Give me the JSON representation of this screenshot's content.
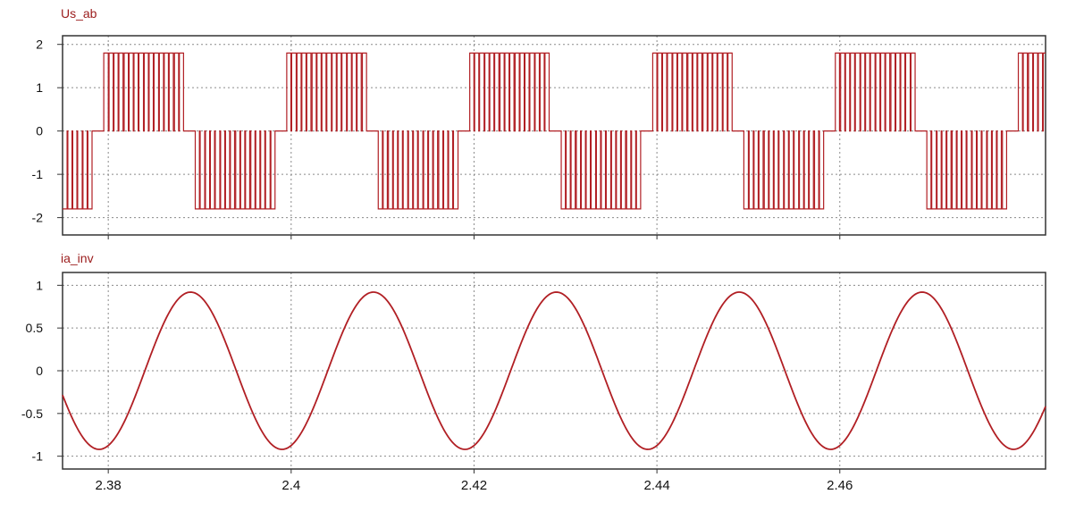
{
  "chart_data": [
    {
      "type": "line",
      "title": "Us_ab",
      "xlim": [
        2.375,
        2.4825
      ],
      "ylim": [
        -2.4,
        2.2
      ],
      "yticks": [
        2,
        1,
        0,
        -1,
        -2
      ],
      "ytick_labels": [
        "2",
        "1",
        "0",
        "-1",
        "-2"
      ],
      "xticks": [
        2.38,
        2.4,
        2.42,
        2.44,
        2.46
      ],
      "grid": true,
      "series": [
        {
          "color": "#b11f24",
          "frequency_hz": 50,
          "amplitude": 1.8,
          "phase_positive_start": 2.3795,
          "positive_duration": 0.0088,
          "negative_start": 2.3895,
          "negative_duration": 0.0088,
          "switching_interval": 0.00055
        }
      ]
    },
    {
      "type": "line",
      "title": "ia_inv",
      "xlim": [
        2.375,
        2.4825
      ],
      "ylim": [
        -1.15,
        1.15
      ],
      "yticks": [
        1,
        0.5,
        0,
        -0.5,
        -1
      ],
      "ytick_labels": [
        "1",
        "0.5",
        "0",
        "-0.5",
        "-1"
      ],
      "xticks": [
        2.38,
        2.4,
        2.42,
        2.44,
        2.46
      ],
      "xtick_labels": [
        "2.38",
        "2.4",
        "2.42",
        "2.44",
        "2.46"
      ],
      "grid": true,
      "series": [
        {
          "color": "#b11f24",
          "frequency_hz": 50,
          "amplitude": 0.92,
          "peak_time": 2.389
        }
      ]
    }
  ]
}
